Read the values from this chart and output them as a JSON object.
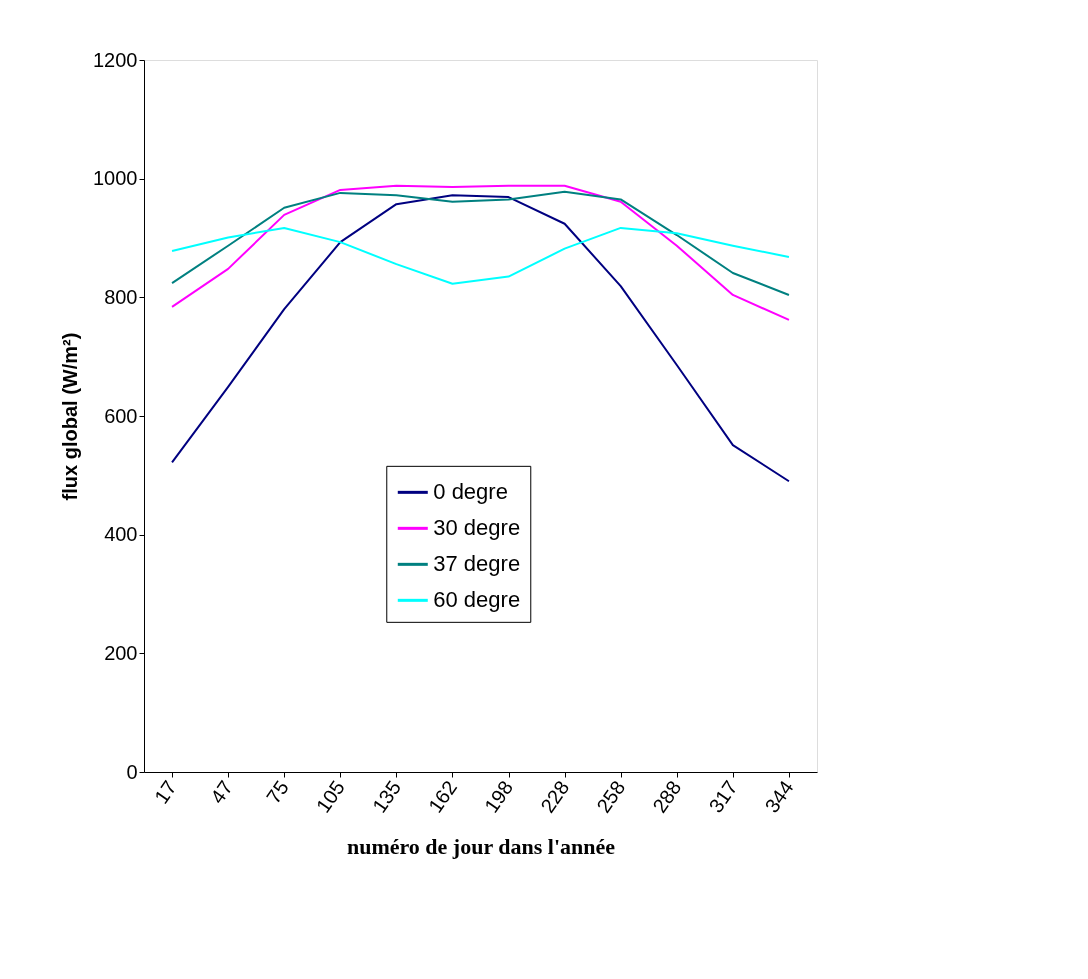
{
  "chart_data": {
    "type": "line",
    "xlabel": "numéro de jour dans l'année",
    "ylabel": "flux global (W/m²)",
    "categories": [
      "17",
      "47",
      "75",
      "105",
      "135",
      "162",
      "198",
      "228",
      "258",
      "288",
      "317",
      "344"
    ],
    "ylim": [
      0,
      1200
    ],
    "yticks": [
      0,
      200,
      400,
      600,
      800,
      1000,
      1200
    ],
    "grid": false,
    "legend": "bottom",
    "marker": "none",
    "line_style": "solid",
    "series": [
      {
        "name": "0 degre",
        "color": "#000080",
        "values": [
          522,
          649,
          780,
          893,
          957,
          972,
          969,
          924,
          819,
          686,
          551,
          490
        ]
      },
      {
        "name": "30 degre",
        "color": "#ff00ff",
        "values": [
          784,
          848,
          939,
          981,
          988,
          986,
          988,
          988,
          961,
          887,
          804,
          762
        ]
      },
      {
        "name": "37 degre",
        "color": "#008080",
        "values": [
          824,
          887,
          951,
          976,
          972,
          961,
          965,
          978,
          965,
          905,
          841,
          804
        ]
      },
      {
        "name": "60 degre",
        "color": "#00ffff",
        "values": [
          878,
          901,
          917,
          893,
          856,
          823,
          835,
          882,
          917,
          908,
          887,
          868
        ]
      }
    ]
  }
}
